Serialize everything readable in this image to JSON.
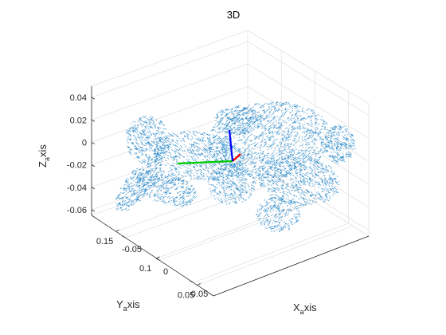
{
  "chart_data": {
    "type": "scatter",
    "title": "3D",
    "xlabel": {
      "main": "X",
      "sub": "a",
      "rest": "xis"
    },
    "ylabel": {
      "main": "Y",
      "sub": "a",
      "rest": "xis"
    },
    "zlabel": {
      "main": "Z",
      "sub": "a",
      "rest": "xis"
    },
    "xlim": [
      -0.1,
      0.08
    ],
    "ylim": [
      0.03,
      0.18
    ],
    "zlim": [
      -0.065,
      0.05
    ],
    "x_ticks": [
      "-0.05",
      "0",
      "0.05"
    ],
    "y_ticks": [
      "0.05",
      "0.1",
      "0.15"
    ],
    "z_ticks": [
      "-0.06",
      "-0.04",
      "-0.02",
      "0",
      "0.02",
      "0.04"
    ],
    "grid": true,
    "series": [
      {
        "marker": "point-cloud",
        "color": "#0072BD"
      }
    ],
    "frame_axes": [
      {
        "color": "#FF0000"
      },
      {
        "color": "#00CC00"
      },
      {
        "color": "#0000FF"
      }
    ]
  }
}
